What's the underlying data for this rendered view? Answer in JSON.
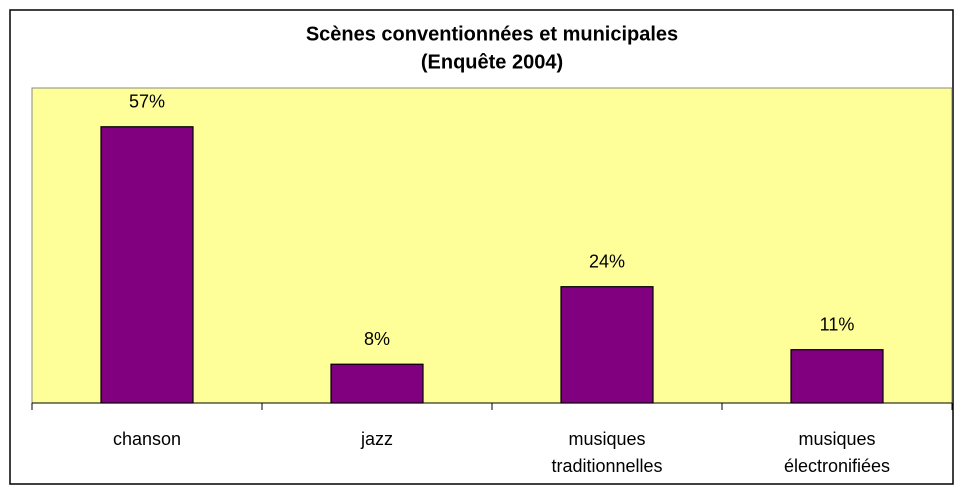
{
  "chart_data": {
    "type": "bar",
    "title": "Scènes conventionnées et municipales",
    "subtitle": "(Enquête 2004)",
    "categories": [
      "chanson",
      "jazz",
      "musiques\ntraditionnelles",
      "musiques\nélectronifiées"
    ],
    "values": [
      57,
      8,
      24,
      11
    ],
    "value_labels": [
      "57%",
      "8%",
      "24%",
      "11%"
    ],
    "color": "#800080",
    "ylim": [
      0,
      65
    ]
  }
}
